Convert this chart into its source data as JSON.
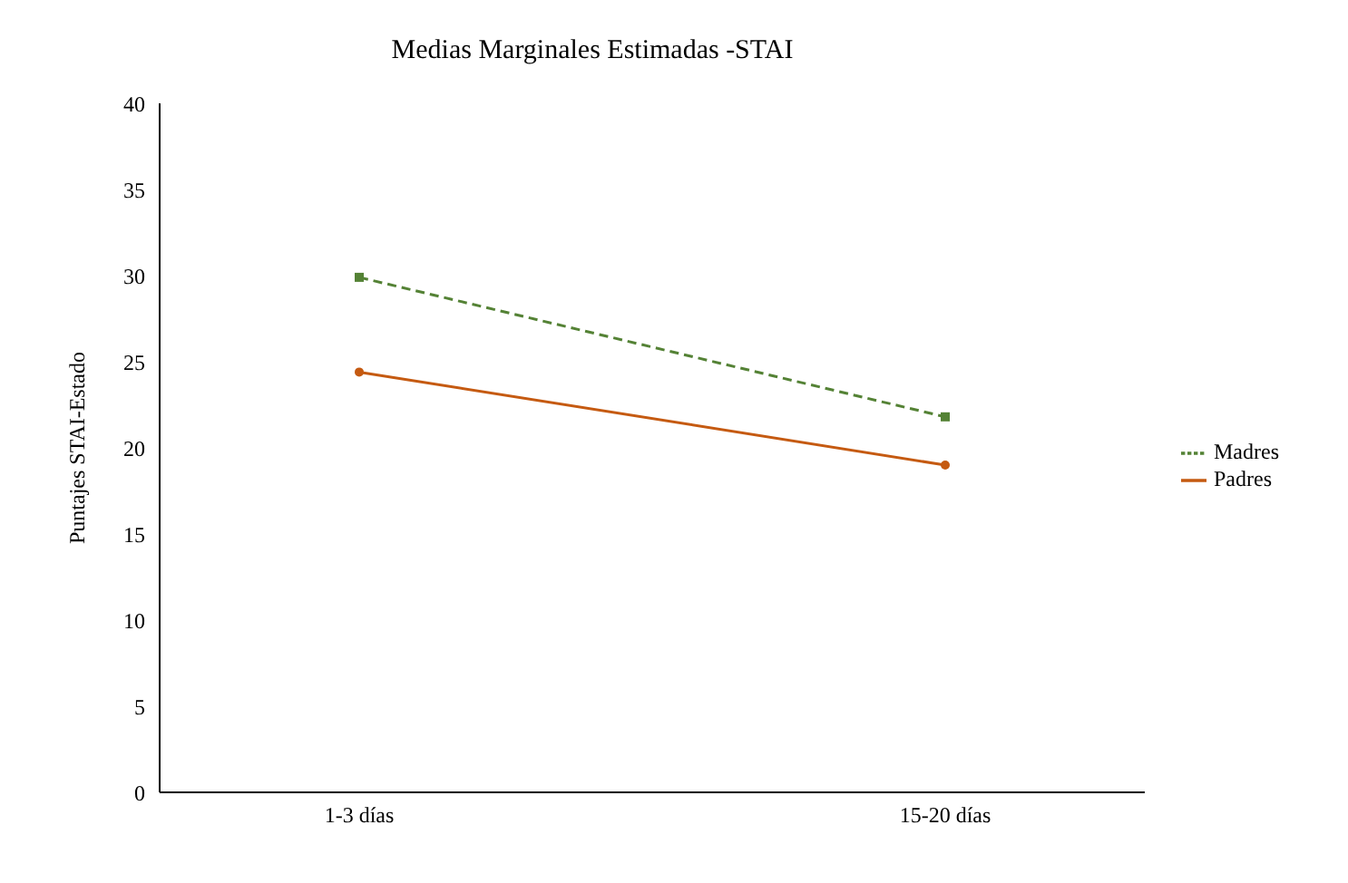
{
  "chart_data": {
    "type": "line",
    "title": "Medias Marginales Estimadas -STAI",
    "ylabel": "Puntajes STAI-Estado",
    "categories": [
      "1-3 días",
      "15-20 días"
    ],
    "series": [
      {
        "name": "Madres",
        "color": "#548235",
        "values": [
          29.9,
          21.8
        ],
        "line_style": "dashed",
        "marker": "square"
      },
      {
        "name": "Padres",
        "color": "#c55a11",
        "values": [
          24.4,
          19.0
        ],
        "line_style": "solid",
        "marker": "circle"
      }
    ],
    "ylim": [
      0,
      40
    ],
    "yticks": [
      0,
      5,
      10,
      15,
      20,
      25,
      30,
      35,
      40
    ],
    "grid": false,
    "legend": "right"
  }
}
